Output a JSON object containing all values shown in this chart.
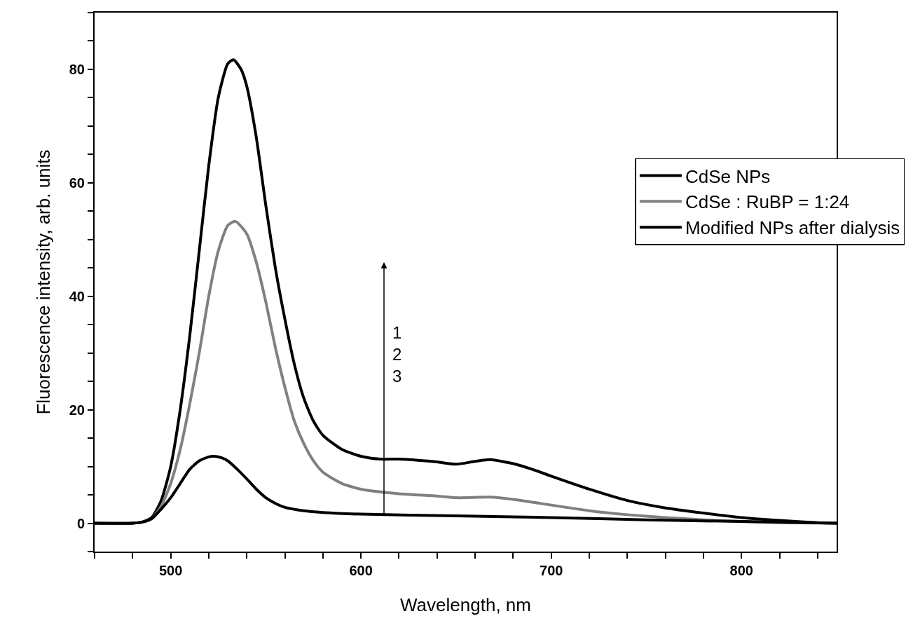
{
  "chart_data": {
    "type": "line",
    "xlabel": "Wavelength, nm",
    "ylabel": "Fluorescence intensity, arb. units",
    "xlim": [
      460,
      850
    ],
    "ylim": [
      -5,
      90
    ],
    "xticks": [
      {
        "value": 460,
        "label": null
      },
      {
        "value": 480,
        "label": null
      },
      500,
      {
        "value": 520,
        "label": null
      },
      {
        "value": 540,
        "label": null
      },
      {
        "value": 560,
        "label": null
      },
      {
        "value": 580,
        "label": null
      },
      600,
      {
        "value": 620,
        "label": null
      },
      {
        "value": 640,
        "label": null
      },
      {
        "value": 660,
        "label": null
      },
      {
        "value": 680,
        "label": null
      },
      700,
      {
        "value": 720,
        "label": null
      },
      {
        "value": 740,
        "label": null
      },
      {
        "value": 760,
        "label": null
      },
      {
        "value": 780,
        "label": null
      },
      800,
      {
        "value": 820,
        "label": null
      },
      {
        "value": 840,
        "label": null
      }
    ],
    "yticks": [
      {
        "value": -5,
        "label": null
      },
      0,
      {
        "value": 5,
        "label": null
      },
      {
        "value": 10,
        "label": null
      },
      {
        "value": 15,
        "label": null
      },
      20,
      {
        "value": 25,
        "label": null
      },
      {
        "value": 30,
        "label": null
      },
      {
        "value": 35,
        "label": null
      },
      40,
      {
        "value": 45,
        "label": null
      },
      {
        "value": 50,
        "label": null
      },
      {
        "value": 55,
        "label": null
      },
      60,
      {
        "value": 65,
        "label": null
      },
      {
        "value": 70,
        "label": null
      },
      {
        "value": 75,
        "label": null
      },
      80,
      {
        "value": 85,
        "label": null
      },
      {
        "value": 90,
        "label": null
      }
    ],
    "legend": "top right",
    "marker": "none",
    "line_style": "solid",
    "annotations": [
      "1\n2\n3"
    ],
    "series": [
      {
        "name": "CdSe NPs",
        "color": "#000000",
        "x": [
          460,
          480,
          485,
          490,
          495,
          500,
          505,
          510,
          515,
          520,
          525,
          530,
          533,
          537,
          540,
          545,
          550,
          555,
          560,
          565,
          570,
          575,
          580,
          590,
          600,
          610,
          620,
          630,
          640,
          650,
          660,
          668,
          680,
          690,
          700,
          720,
          740,
          760,
          780,
          800,
          820,
          840,
          850
        ],
        "values": [
          0,
          0,
          0.2,
          1,
          4,
          10,
          20,
          33,
          48,
          63,
          75,
          81,
          81.7,
          80,
          77,
          68,
          56,
          45,
          36,
          28,
          22,
          18,
          15.5,
          13,
          11.8,
          11.3,
          11.3,
          11.1,
          10.8,
          10.4,
          10.9,
          11.2,
          10.5,
          9.5,
          8.3,
          6,
          4,
          2.7,
          1.8,
          1,
          0.5,
          0.1,
          0
        ]
      },
      {
        "name": "CdSe : RuBP = 1:24",
        "color": "#808080",
        "x": [
          460,
          480,
          485,
          490,
          495,
          500,
          505,
          510,
          515,
          520,
          525,
          530,
          534,
          540,
          545,
          550,
          555,
          560,
          565,
          570,
          575,
          580,
          590,
          600,
          620,
          640,
          650,
          668,
          680,
          700,
          720,
          740,
          760,
          780,
          800,
          820,
          850
        ],
        "values": [
          0,
          0,
          0.2,
          0.8,
          3,
          7,
          13,
          21,
          30,
          40,
          48,
          52.5,
          53.2,
          51,
          46,
          39,
          31,
          24,
          18,
          14,
          11,
          9,
          7,
          6,
          5.2,
          4.8,
          4.5,
          4.6,
          4.2,
          3.2,
          2.2,
          1.5,
          1,
          0.6,
          0.3,
          0.1,
          0
        ]
      },
      {
        "name": "Modified NPs after dialysis",
        "color": "#000000",
        "x": [
          460,
          480,
          485,
          490,
          495,
          500,
          505,
          510,
          515,
          520,
          523,
          527,
          530,
          535,
          540,
          545,
          550,
          555,
          560,
          570,
          580,
          600,
          650,
          700,
          750,
          800,
          850
        ],
        "values": [
          0,
          0,
          0.2,
          0.8,
          2.5,
          4.5,
          7,
          9.5,
          11,
          11.7,
          11.8,
          11.5,
          11,
          9.5,
          7.8,
          6,
          4.5,
          3.5,
          2.8,
          2.2,
          1.9,
          1.6,
          1.3,
          1,
          0.6,
          0.3,
          0
        ]
      }
    ]
  }
}
